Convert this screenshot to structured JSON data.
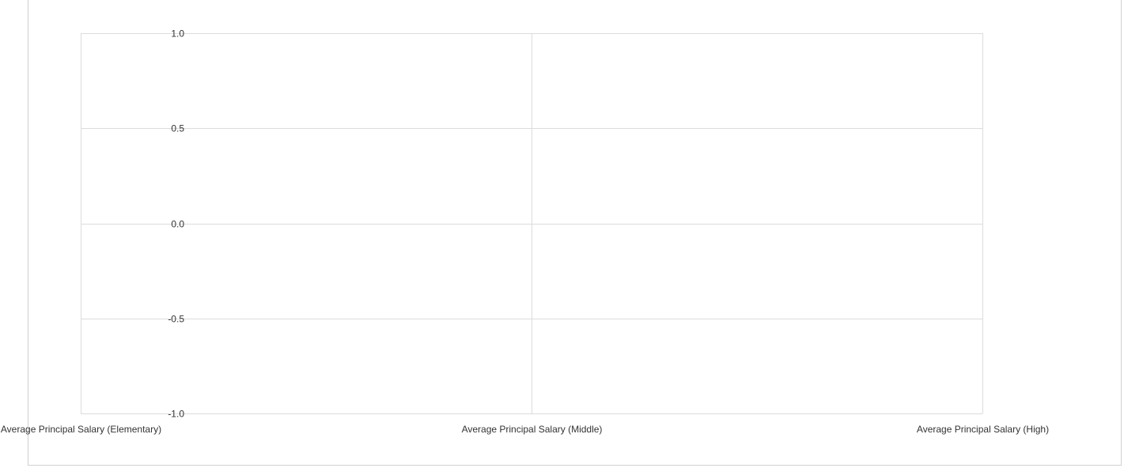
{
  "chart_data": {
    "type": "line",
    "title": "",
    "xlabel": "",
    "ylabel": "",
    "categories": [
      "Average Principal Salary (Elementary)",
      "Average Principal Salary (Middle)",
      "Average Principal Salary (High)"
    ],
    "series": [],
    "ylim": [
      -1.0,
      1.0
    ],
    "yticks": [
      "1.0",
      "0.5",
      "0.0",
      "-0.5",
      "-1.0"
    ],
    "grid": true,
    "legend": "none"
  }
}
